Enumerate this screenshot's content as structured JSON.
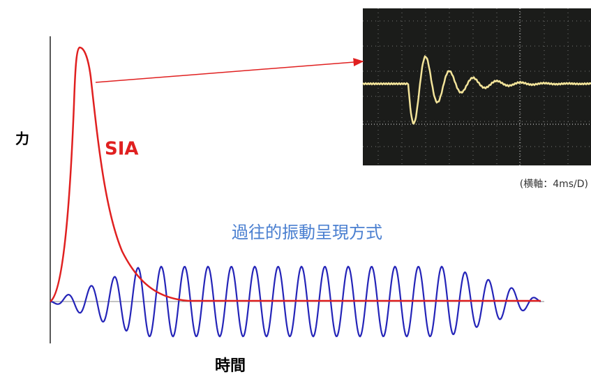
{
  "y_axis_label": "力",
  "x_axis_label": "時間",
  "sia_label": "SIA",
  "scope_caption": "(横軸：4ms/D)",
  "traditional_label": "過往的振動呈現方式"
}
